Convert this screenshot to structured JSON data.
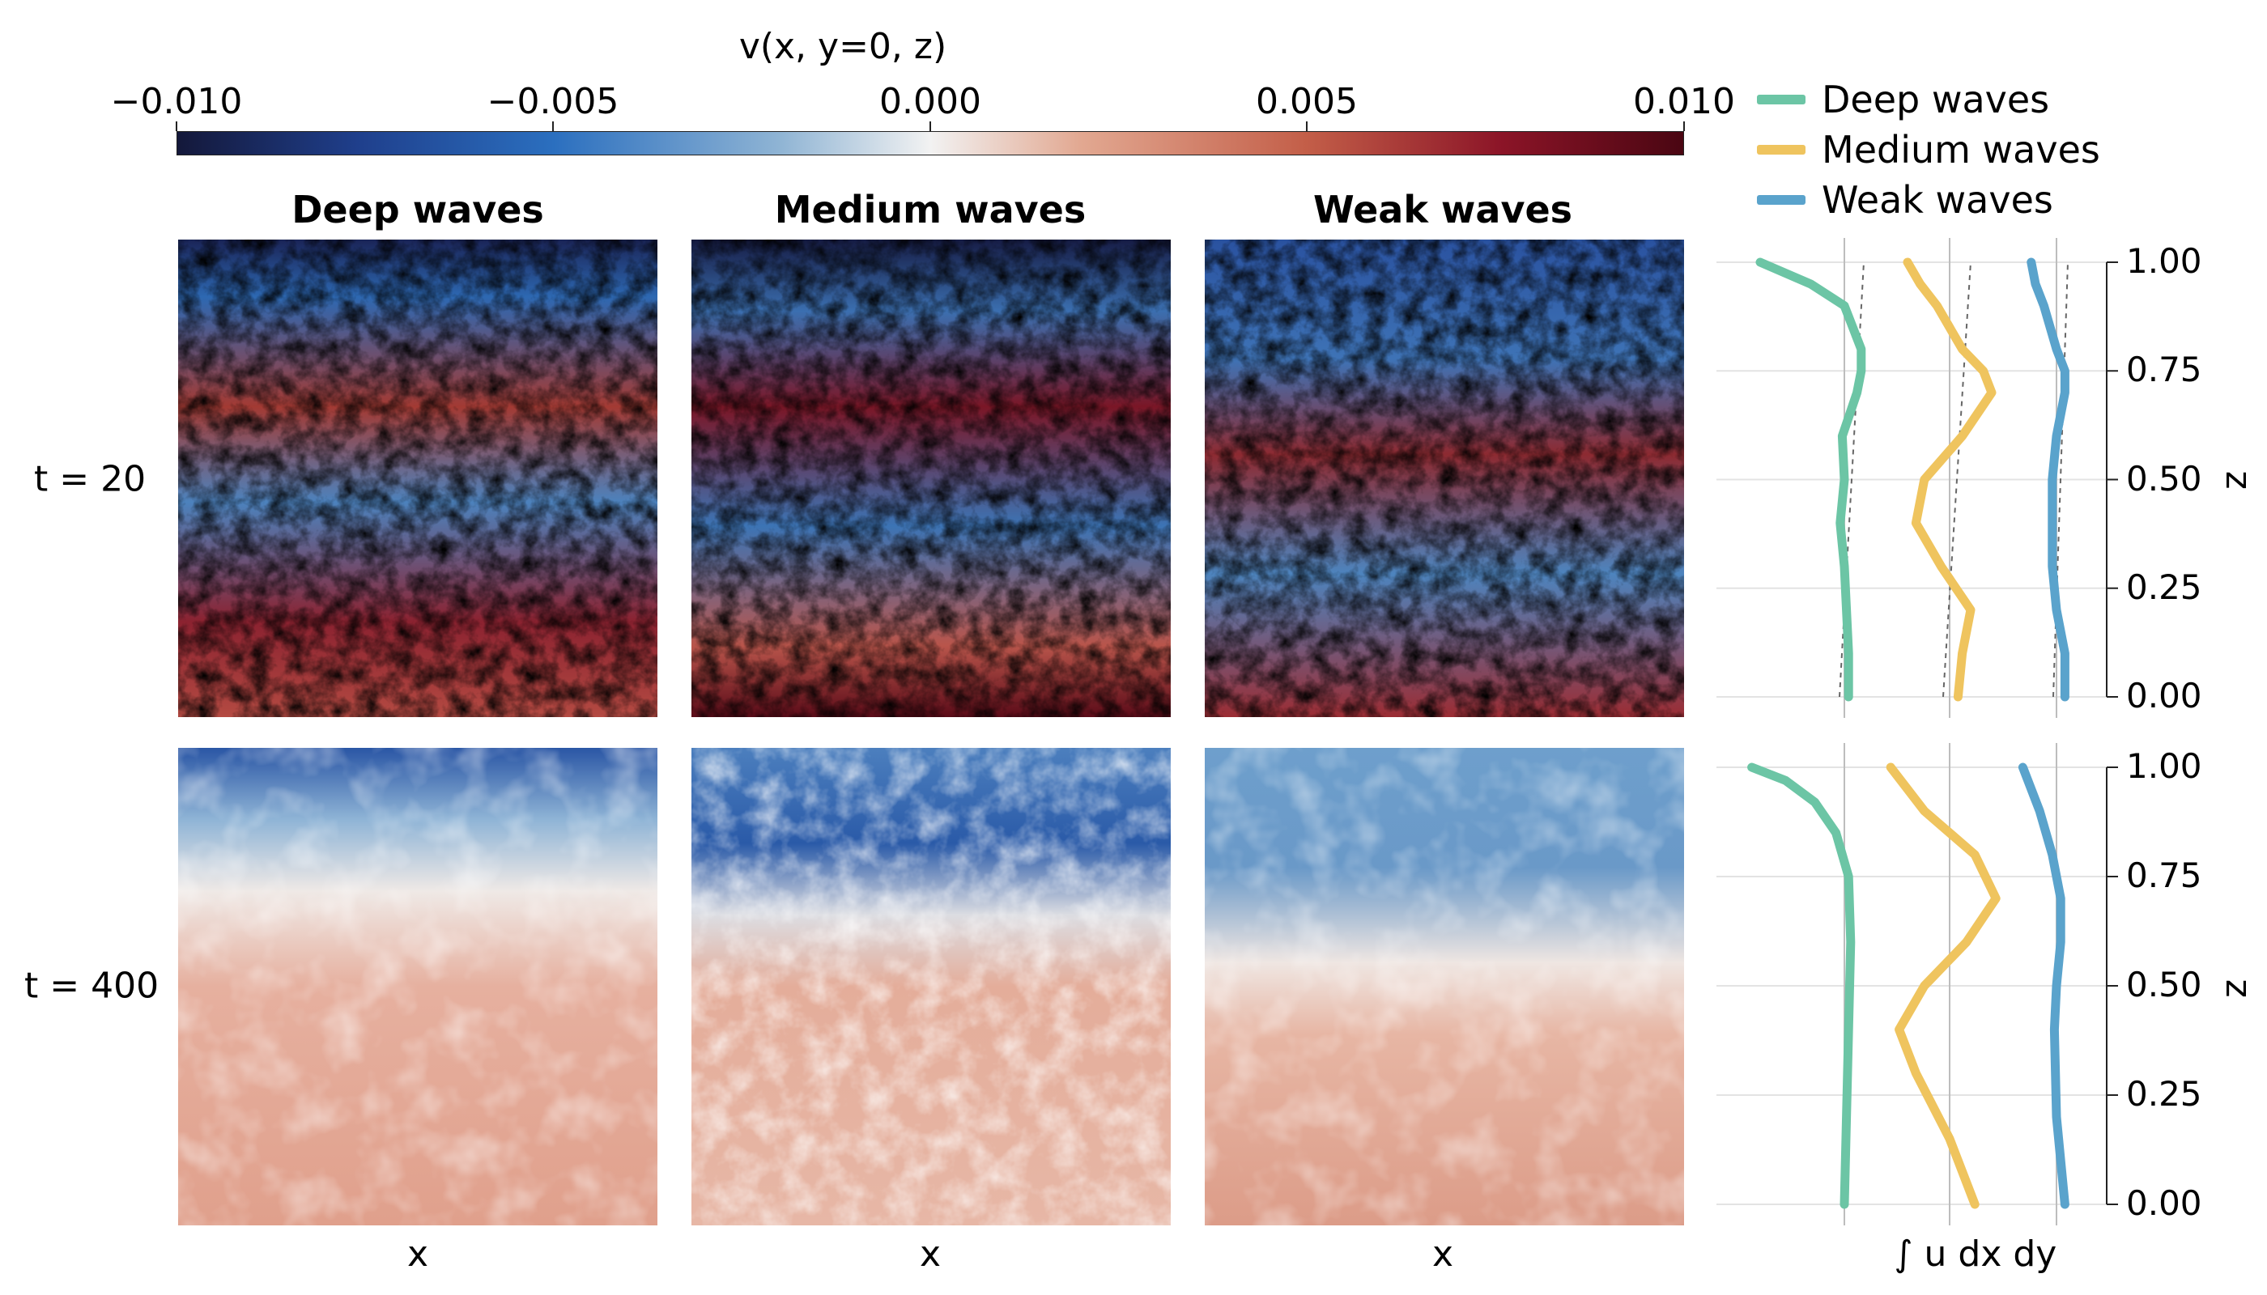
{
  "colorbar": {
    "label": "v(x, y=0, z)",
    "ticks": [
      "−0.010",
      "−0.005",
      "0.000",
      "0.005",
      "0.010"
    ],
    "range": [
      -0.01,
      0.01
    ],
    "colormap": [
      "#14183a",
      "#1f3f8c",
      "#2b6fbf",
      "#8fb4d4",
      "#f2f2f2",
      "#e2a891",
      "#c35e48",
      "#8b1427",
      "#4a0612"
    ]
  },
  "legend": {
    "items": [
      {
        "label": "Deep waves",
        "color": "#6cc5a5"
      },
      {
        "label": "Medium waves",
        "color": "#efc45e"
      },
      {
        "label": "Weak waves",
        "color": "#5aa3cc"
      }
    ]
  },
  "columns": [
    "Deep waves",
    "Medium waves",
    "Weak waves"
  ],
  "rows": [
    "t = 20",
    "t = 400"
  ],
  "xlabels": [
    "x",
    "x",
    "x",
    "∫ u dx dy"
  ],
  "zlabel": "z",
  "zticks": [
    "0.00",
    "0.25",
    "0.50",
    "0.75",
    "1.00"
  ],
  "chart_data": [
    {
      "type": "heatmap",
      "title": "v(x, y=0, z)",
      "panels": [
        {
          "row": "t = 20",
          "column": "Deep waves",
          "xlabel": "x"
        },
        {
          "row": "t = 20",
          "column": "Medium waves",
          "xlabel": "x"
        },
        {
          "row": "t = 20",
          "column": "Weak waves",
          "xlabel": "x"
        },
        {
          "row": "t = 400",
          "column": "Deep waves",
          "xlabel": "x"
        },
        {
          "row": "t = 400",
          "column": "Medium waves",
          "xlabel": "x"
        },
        {
          "row": "t = 400",
          "column": "Weak waves",
          "xlabel": "x"
        }
      ],
      "colorbar_range": [
        -0.01,
        0.01
      ]
    },
    {
      "type": "line",
      "row": "t = 20",
      "xlabel": "∫ u dx dy",
      "ylabel": "z",
      "ylim": [
        0,
        1
      ],
      "series": [
        {
          "name": "Deep waves",
          "z": [
            0,
            0.1,
            0.2,
            0.3,
            0.4,
            0.5,
            0.6,
            0.7,
            0.75,
            0.8,
            0.9,
            0.95,
            1.0
          ],
          "offset": [
            0.01,
            0.01,
            0.005,
            0.0,
            -0.01,
            0.0,
            -0.005,
            0.03,
            0.04,
            0.04,
            0.0,
            -0.08,
            -0.2
          ]
        },
        {
          "name": "Medium waves",
          "z": [
            0,
            0.1,
            0.2,
            0.3,
            0.4,
            0.5,
            0.6,
            0.7,
            0.75,
            0.8,
            0.9,
            0.95,
            1.0
          ],
          "offset": [
            0.02,
            0.03,
            0.05,
            -0.02,
            -0.08,
            -0.06,
            0.03,
            0.1,
            0.08,
            0.03,
            -0.03,
            -0.07,
            -0.1
          ]
        },
        {
          "name": "Weak waves",
          "z": [
            0,
            0.1,
            0.2,
            0.3,
            0.4,
            0.5,
            0.6,
            0.7,
            0.75,
            0.8,
            0.9,
            0.95,
            1.0
          ],
          "offset": [
            0.02,
            0.02,
            0.0,
            -0.01,
            -0.01,
            -0.01,
            0.0,
            0.02,
            0.02,
            0.0,
            -0.03,
            -0.05,
            -0.06
          ]
        }
      ]
    },
    {
      "type": "line",
      "row": "t = 400",
      "xlabel": "∫ u dx dy",
      "ylabel": "z",
      "ylim": [
        0,
        1
      ],
      "series": [
        {
          "name": "Deep waves",
          "z": [
            0,
            0.2,
            0.4,
            0.6,
            0.75,
            0.85,
            0.92,
            0.97,
            1.0
          ],
          "offset": [
            0.0,
            0.005,
            0.01,
            0.015,
            0.01,
            -0.02,
            -0.07,
            -0.14,
            -0.22
          ]
        },
        {
          "name": "Medium waves",
          "z": [
            0,
            0.15,
            0.3,
            0.4,
            0.5,
            0.6,
            0.7,
            0.8,
            0.9,
            1.0
          ],
          "offset": [
            0.06,
            0.0,
            -0.08,
            -0.12,
            -0.06,
            0.04,
            0.11,
            0.06,
            -0.06,
            -0.14
          ]
        },
        {
          "name": "Weak waves",
          "z": [
            0,
            0.2,
            0.4,
            0.5,
            0.6,
            0.7,
            0.8,
            0.9,
            1.0
          ],
          "offset": [
            0.02,
            0.0,
            -0.005,
            0.0,
            0.01,
            0.01,
            -0.01,
            -0.04,
            -0.08
          ]
        }
      ]
    }
  ]
}
